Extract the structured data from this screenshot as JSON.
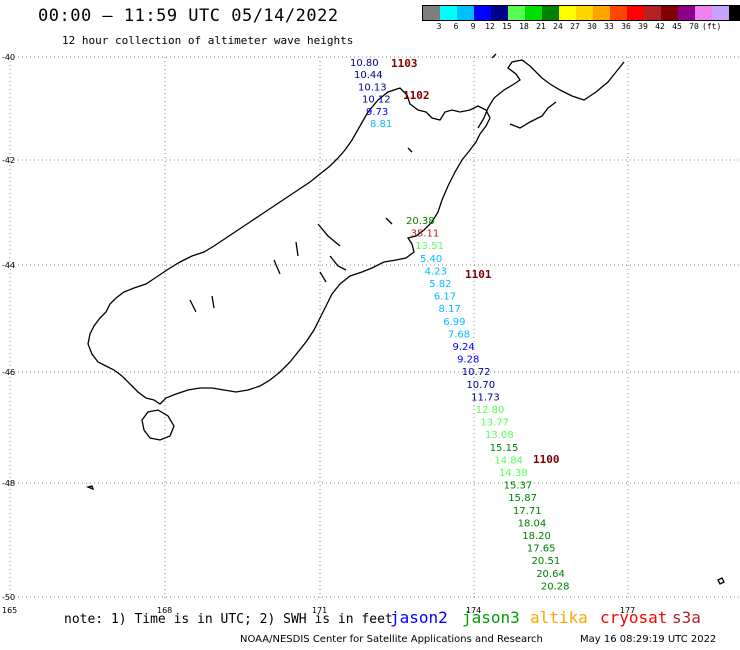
{
  "title": "00:00 – 11:59 UTC 05/14/2022",
  "subtitle": "12 hour collection of altimeter wave heights",
  "colorbar": {
    "colors": [
      "#7f7f7f",
      "#00ffff",
      "#00bfff",
      "#0000ff",
      "#00008b",
      "#55ff55",
      "#00dd00",
      "#008000",
      "#ffff00",
      "#ffd700",
      "#ffa500",
      "#ff4500",
      "#ff0000",
      "#b22222",
      "#800000",
      "#8b008b",
      "#ee82ee",
      "#c8a2ff",
      "#000000"
    ],
    "labels": [
      "3",
      "6",
      "9",
      "12",
      "15",
      "18",
      "21",
      "24",
      "27",
      "30",
      "33",
      "36",
      "39",
      "42",
      "45",
      "70",
      "(ft)"
    ]
  },
  "lat_labels": [
    "-40",
    "-42",
    "-44",
    "-46",
    "-48",
    "-50"
  ],
  "lon_labels": [
    "165",
    "168",
    "171",
    "174",
    "177"
  ],
  "passes": [
    {
      "id": "1103",
      "label": "1103"
    },
    {
      "id": "1102",
      "label": "1102"
    },
    {
      "id": "1101",
      "label": "1101"
    },
    {
      "id": "1100",
      "label": "1100"
    }
  ],
  "observations_top": [
    {
      "value": "10.80",
      "color": "#00008b"
    },
    {
      "value": "10.44",
      "color": "#00008b"
    },
    {
      "value": "10.13",
      "color": "#00008b"
    },
    {
      "value": "10.12",
      "color": "#00008b"
    },
    {
      "value": "9.73",
      "color": "#0000ff"
    },
    {
      "value": "8.81",
      "color": "#00bfff"
    }
  ],
  "observations_main": [
    {
      "value": "20.38",
      "color": "#008000"
    },
    {
      "value": "35.11",
      "color": "#b22222"
    },
    {
      "value": "13.51",
      "color": "#55ff55"
    },
    {
      "value": "5.40",
      "color": "#00bfff"
    },
    {
      "value": "4.23",
      "color": "#00bfff"
    },
    {
      "value": "5.82",
      "color": "#00bfff"
    },
    {
      "value": "6.17",
      "color": "#00bfff"
    },
    {
      "value": "8.17",
      "color": "#00bfff"
    },
    {
      "value": "6.99",
      "color": "#00bfff"
    },
    {
      "value": "7.68",
      "color": "#00bfff"
    },
    {
      "value": "9.24",
      "color": "#0000ff"
    },
    {
      "value": "9.28",
      "color": "#0000ff"
    },
    {
      "value": "10.72",
      "color": "#00008b"
    },
    {
      "value": "10.70",
      "color": "#00008b"
    },
    {
      "value": "11.73",
      "color": "#00008b"
    },
    {
      "value": "12.80",
      "color": "#55ff55"
    },
    {
      "value": "13.77",
      "color": "#55ff55"
    },
    {
      "value": "13.08",
      "color": "#55ff55"
    },
    {
      "value": "15.15",
      "color": "#008000"
    },
    {
      "value": "14.84",
      "color": "#55ff55"
    },
    {
      "value": "14.38",
      "color": "#55ff55"
    },
    {
      "value": "15.37",
      "color": "#008000"
    },
    {
      "value": "15.87",
      "color": "#008000"
    },
    {
      "value": "17.71",
      "color": "#008000"
    },
    {
      "value": "18.04",
      "color": "#008000"
    },
    {
      "value": "18.20",
      "color": "#008000"
    },
    {
      "value": "17.65",
      "color": "#008000"
    },
    {
      "value": "20.51",
      "color": "#008000"
    },
    {
      "value": "20.64",
      "color": "#008000"
    },
    {
      "value": "20.28",
      "color": "#008000"
    }
  ],
  "note": "note: 1) Time is in UTC; 2) SWH is in feet",
  "satellites": [
    {
      "name": "jason2",
      "color": "#0000ff"
    },
    {
      "name": "jason3",
      "color": "#00a000"
    },
    {
      "name": "altika",
      "color": "#ffa500"
    },
    {
      "name": "cryosat",
      "color": "#ff0000"
    },
    {
      "name": "s3a",
      "color": "#b22222"
    }
  ],
  "credit": "NOAA/NESDIS Center for Satellite Applications and Research",
  "timestamp": "May 16 08:29:19 UTC 2022"
}
